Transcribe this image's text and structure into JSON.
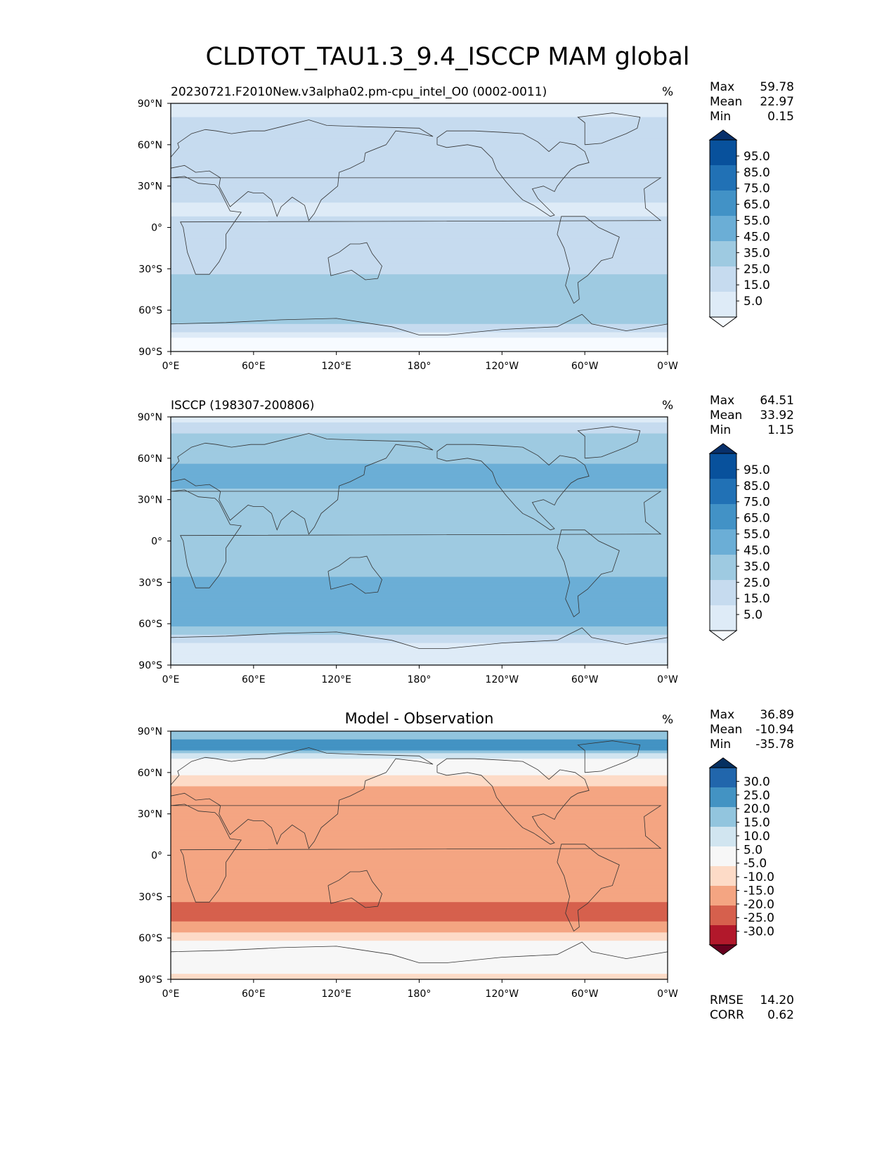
{
  "title": "CLDTOT_TAU1.3_9.4_ISCCP MAM global",
  "units": "%",
  "colors": {
    "blues": [
      "#f7fbff",
      "#deebf7",
      "#c6dbef",
      "#9ecae1",
      "#6baed6",
      "#4292c6",
      "#2171b5",
      "#08519c",
      "#08306b"
    ],
    "diverging": [
      "#67001f",
      "#b2182b",
      "#d6604d",
      "#f4a582",
      "#fddbc7",
      "#f7f7f7",
      "#d1e5f0",
      "#92c5de",
      "#4393c3",
      "#2166ac",
      "#053061"
    ],
    "land_outline": "#333333"
  },
  "chart_data": [
    {
      "type": "heatmap",
      "id": "model",
      "title": "20230721.F2010New.v3alpha02.pm-cpu_intel_O0 (0002-0011)",
      "units": "%",
      "xlabel": "",
      "ylabel": "",
      "xticks": [
        "0°E",
        "60°E",
        "120°E",
        "180°",
        "120°W",
        "60°W",
        "0°W"
      ],
      "yticks": [
        "90°N",
        "60°N",
        "30°N",
        "0°",
        "30°S",
        "60°S",
        "90°S"
      ],
      "stats": [
        {
          "label": "Max",
          "value": "59.78"
        },
        {
          "label": "Mean",
          "value": "22.97"
        },
        {
          "label": "Min",
          "value": "0.15"
        }
      ],
      "colorbar": {
        "labels": [
          "95.0",
          "85.0",
          "75.0",
          "65.0",
          "55.0",
          "45.0",
          "35.0",
          "25.0",
          "15.0",
          "5.0"
        ],
        "extend": "both"
      },
      "zonal_mean_by_lat": [
        [
          90,
          5
        ],
        [
          75,
          20
        ],
        [
          60,
          18
        ],
        [
          45,
          22
        ],
        [
          30,
          18
        ],
        [
          15,
          14
        ],
        [
          0,
          16
        ],
        [
          -15,
          20
        ],
        [
          -30,
          24
        ],
        [
          -45,
          28
        ],
        [
          -60,
          35
        ],
        [
          -70,
          25
        ],
        [
          -80,
          5
        ],
        [
          -90,
          3
        ]
      ]
    },
    {
      "type": "heatmap",
      "id": "obs",
      "title": "ISCCP (198307-200806)",
      "units": "%",
      "xticks": [
        "0°E",
        "60°E",
        "120°E",
        "180°",
        "120°W",
        "60°W",
        "0°W"
      ],
      "yticks": [
        "90°N",
        "60°N",
        "30°N",
        "0°",
        "30°S",
        "60°S",
        "90°S"
      ],
      "stats": [
        {
          "label": "Max",
          "value": "64.51"
        },
        {
          "label": "Mean",
          "value": "33.92"
        },
        {
          "label": "Min",
          "value": "1.15"
        }
      ],
      "colorbar": {
        "labels": [
          "95.0",
          "85.0",
          "75.0",
          "65.0",
          "55.0",
          "45.0",
          "35.0",
          "25.0",
          "15.0",
          "5.0"
        ],
        "extend": "both"
      },
      "zonal_mean_by_lat": [
        [
          90,
          10
        ],
        [
          75,
          30
        ],
        [
          60,
          34
        ],
        [
          45,
          38
        ],
        [
          30,
          32
        ],
        [
          15,
          28
        ],
        [
          0,
          30
        ],
        [
          -15,
          32
        ],
        [
          -30,
          36
        ],
        [
          -45,
          44
        ],
        [
          -60,
          40
        ],
        [
          -70,
          20
        ],
        [
          -80,
          8
        ],
        [
          -90,
          5
        ]
      ]
    },
    {
      "type": "heatmap",
      "id": "diff",
      "title": "Model - Observation",
      "units": "%",
      "xticks": [
        "0°E",
        "60°E",
        "120°E",
        "180°",
        "120°W",
        "60°W",
        "0°W"
      ],
      "yticks": [
        "90°N",
        "60°N",
        "30°N",
        "0°",
        "30°S",
        "60°S",
        "90°S"
      ],
      "stats": [
        {
          "label": "Max",
          "value": "36.89"
        },
        {
          "label": "Mean",
          "value": "-10.94"
        },
        {
          "label": "Min",
          "value": "-35.78"
        }
      ],
      "colorbar": {
        "labels": [
          "30.0",
          "25.0",
          "20.0",
          "15.0",
          "10.0",
          "5.0",
          "-5.0",
          "-10.0",
          "-15.0",
          "-20.0",
          "-25.0",
          "-30.0"
        ],
        "extend": "both"
      },
      "extra_stats": [
        {
          "label": "RMSE",
          "value": "14.20"
        },
        {
          "label": "CORR",
          "value": "0.62"
        }
      ],
      "zonal_mean_by_lat": [
        [
          90,
          10
        ],
        [
          80,
          20
        ],
        [
          70,
          5
        ],
        [
          60,
          -3
        ],
        [
          45,
          -14
        ],
        [
          30,
          -14
        ],
        [
          15,
          -12
        ],
        [
          0,
          -12
        ],
        [
          -15,
          -12
        ],
        [
          -30,
          -14
        ],
        [
          -45,
          -18
        ],
        [
          -55,
          -10
        ],
        [
          -65,
          -2
        ],
        [
          -75,
          0
        ],
        [
          -85,
          -4
        ],
        [
          -90,
          -8
        ]
      ]
    }
  ]
}
